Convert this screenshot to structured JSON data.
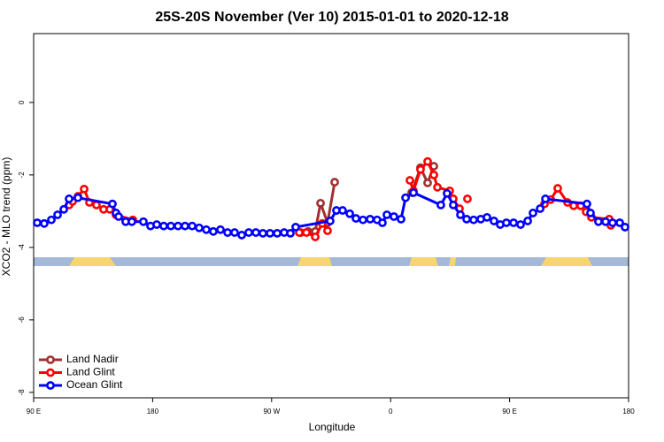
{
  "chart_data": {
    "type": "line",
    "title": "25S-20S November (Ver 10)   2015-01-01 to 2020-12-18",
    "xlabel": "Longitude",
    "ylabel": "XCO2 - MLO trend (ppm)",
    "xlim": [
      90,
      540
    ],
    "xticks": [
      {
        "value": 90,
        "label": "90 E"
      },
      180,
      {
        "value": 270,
        "label": "90 W"
      },
      {
        "value": 360,
        "label": "0"
      },
      {
        "value": 450,
        "label": "90 E"
      },
      {
        "value": 540,
        "label": "180"
      }
    ],
    "ylim": [
      -8.15,
      1.9
    ],
    "yticks": [
      0,
      -2,
      -4,
      -6,
      -8
    ],
    "legend": "lower left",
    "series": [
      {
        "name": "Land Nadir",
        "color": "#a03030",
        "x": [
          292.2,
          297.6,
          303.0,
          307.0,
          312.3,
          317.7,
          null,
          375.9,
          382.6,
          388.0,
          392.7
        ],
        "values": [
          -3.59,
          -3.56,
          -3.56,
          -2.78,
          -3.32,
          -2.2,
          null,
          -2.49,
          -1.8,
          -2.22,
          -1.76
        ]
      },
      {
        "name": "Land Glint",
        "color": "#ff0000",
        "x": [
          116.8,
          119.5,
          123.5,
          128.2,
          132.2,
          137.5,
          142.9,
          147.6,
          152.3,
          165.0,
          null,
          290.9,
          296.3,
          303.0,
          308.3,
          312.3,
          null,
          374.6,
          377.3,
          382.6,
          388.0,
          392.7,
          395.4,
          404.7,
          407.4,
          412.1,
          null,
          418.1,
          null,
          476.4,
          481.1,
          486.4,
          493.8,
          498.5,
          503.8,
          507.9,
          511.9,
          525.3,
          526.6
        ],
        "values": [
          -2.83,
          -2.73,
          -2.59,
          -2.39,
          -2.76,
          -2.83,
          -2.95,
          -2.95,
          -3.1,
          -3.24,
          null,
          -3.59,
          -3.59,
          -3.71,
          -3.34,
          -3.54,
          null,
          -2.15,
          -2.44,
          -1.85,
          -1.63,
          -2.0,
          -2.34,
          -2.44,
          -2.66,
          -2.93,
          null,
          -2.66,
          null,
          -2.8,
          -2.68,
          -2.37,
          -2.76,
          -2.85,
          -2.85,
          -3.02,
          -3.17,
          -3.22,
          -3.39
        ]
      },
      {
        "name": "Ocean Glint",
        "color": "#0000ff",
        "x": [
          92.7,
          98.0,
          103.4,
          108.1,
          112.8,
          116.8,
          123.5,
          149.6,
          152.3,
          154.3,
          159.6,
          164.3,
          173.0,
          178.4,
          183.1,
          188.4,
          193.8,
          199.2,
          204.5,
          209.9,
          215.2,
          220.6,
          225.9,
          231.3,
          236.7,
          242.0,
          247.4,
          252.7,
          258.1,
          263.4,
          268.8,
          274.2,
          279.5,
          284.2,
          288.2,
          314.3,
          319.0,
          323.7,
          329.1,
          333.8,
          339.1,
          344.5,
          349.8,
          353.8,
          357.2,
          362.5,
          367.9,
          371.3,
          377.3,
          398.0,
          402.7,
          407.4,
          412.8,
          417.5,
          422.8,
          428.2,
          432.9,
          438.2,
          442.9,
          447.6,
          453.0,
          458.3,
          463.7,
          467.7,
          473.1,
          477.1,
          508.5,
          511.2,
          517.2,
          522.6,
          527.9,
          533.3,
          537.3
        ],
        "values": [
          -3.32,
          -3.34,
          -3.24,
          -3.1,
          -2.95,
          -2.66,
          -2.63,
          -2.8,
          -3.05,
          -3.15,
          -3.29,
          -3.29,
          -3.29,
          -3.41,
          -3.37,
          -3.41,
          -3.41,
          -3.41,
          -3.41,
          -3.41,
          -3.46,
          -3.51,
          -3.56,
          -3.51,
          -3.59,
          -3.59,
          -3.66,
          -3.59,
          -3.59,
          -3.61,
          -3.61,
          -3.61,
          -3.59,
          -3.61,
          -3.44,
          -3.27,
          -2.98,
          -2.98,
          -3.07,
          -3.2,
          -3.24,
          -3.22,
          -3.24,
          -3.32,
          -3.1,
          -3.15,
          -3.22,
          -2.63,
          -2.49,
          -2.83,
          -2.51,
          -2.83,
          -3.1,
          -3.22,
          -3.24,
          -3.22,
          -3.17,
          -3.27,
          -3.37,
          -3.32,
          -3.32,
          -3.37,
          -3.27,
          -3.05,
          -2.93,
          -2.66,
          -2.8,
          -3.05,
          -3.29,
          -3.29,
          -3.32,
          -3.32,
          -3.44
        ]
      }
    ]
  }
}
